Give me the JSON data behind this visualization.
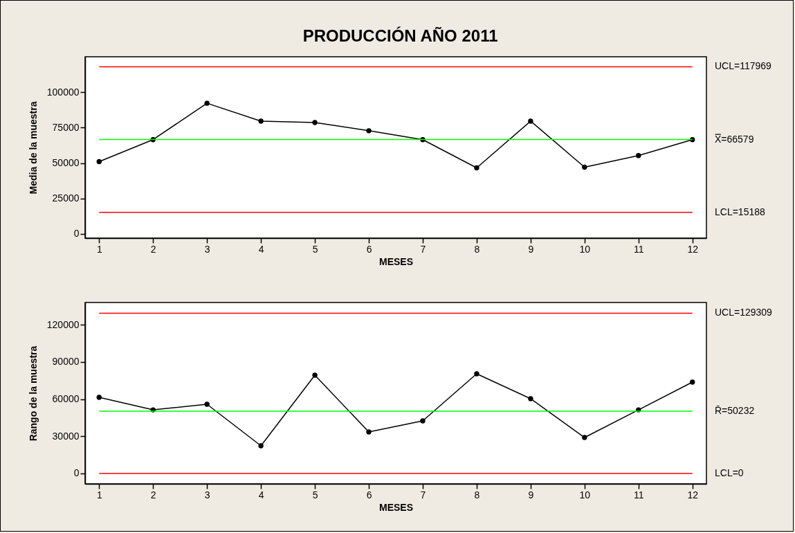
{
  "chart_data": [
    {
      "type": "line",
      "title": "PRODUCCIÓN AÑO 2011",
      "xlabel": "MESES",
      "ylabel": "Media de la muestra",
      "x": [
        1,
        2,
        3,
        4,
        5,
        6,
        7,
        8,
        9,
        10,
        11,
        12
      ],
      "series": [
        {
          "color": "#000000",
          "values": [
            51000,
            66500,
            92200,
            79600,
            78600,
            72800,
            66500,
            46600,
            79600,
            47100,
            55300,
            66500
          ]
        }
      ],
      "xlim": [
        0.74,
        12.26
      ],
      "xticks": [
        1,
        2,
        3,
        4,
        5,
        6,
        7,
        8,
        9,
        10,
        11,
        12
      ],
      "ylim": [
        -3000,
        125000
      ],
      "yticks": [
        0,
        25000,
        50000,
        75000,
        100000
      ],
      "marker": "circle",
      "grid": false,
      "ref_lines": [
        {
          "axis": "y",
          "value": 117969,
          "label": "UCL=117969",
          "color": "#ff0000"
        },
        {
          "axis": "y",
          "value": 66579,
          "label": "X̿=66579",
          "color": "#00ff00"
        },
        {
          "axis": "y",
          "value": 15188,
          "label": "LCL=15188",
          "color": "#ff0000"
        }
      ]
    },
    {
      "type": "line",
      "xlabel": "MESES",
      "ylabel": "Rango de la muestra",
      "x": [
        1,
        2,
        3,
        4,
        5,
        6,
        7,
        8,
        9,
        10,
        11,
        12
      ],
      "series": [
        {
          "color": "#000000",
          "values": [
            61400,
            51300,
            55800,
            22300,
            79300,
            33500,
            42400,
            80400,
            60300,
            29000,
            51300,
            73700
          ]
        }
      ],
      "xlim": [
        0.74,
        12.26
      ],
      "xticks": [
        1,
        2,
        3,
        4,
        5,
        6,
        7,
        8,
        9,
        10,
        11,
        12
      ],
      "ylim": [
        -8400,
        137900
      ],
      "yticks": [
        0,
        30000,
        60000,
        90000,
        120000
      ],
      "marker": "circle",
      "grid": false,
      "ref_lines": [
        {
          "axis": "y",
          "value": 129309,
          "label": "UCL=129309",
          "color": "#ff0000"
        },
        {
          "axis": "y",
          "value": 50232,
          "label": "R̄=50232",
          "color": "#00ff00"
        },
        {
          "axis": "y",
          "value": 0,
          "label": "LCL=0",
          "color": "#ff0000"
        }
      ]
    }
  ]
}
